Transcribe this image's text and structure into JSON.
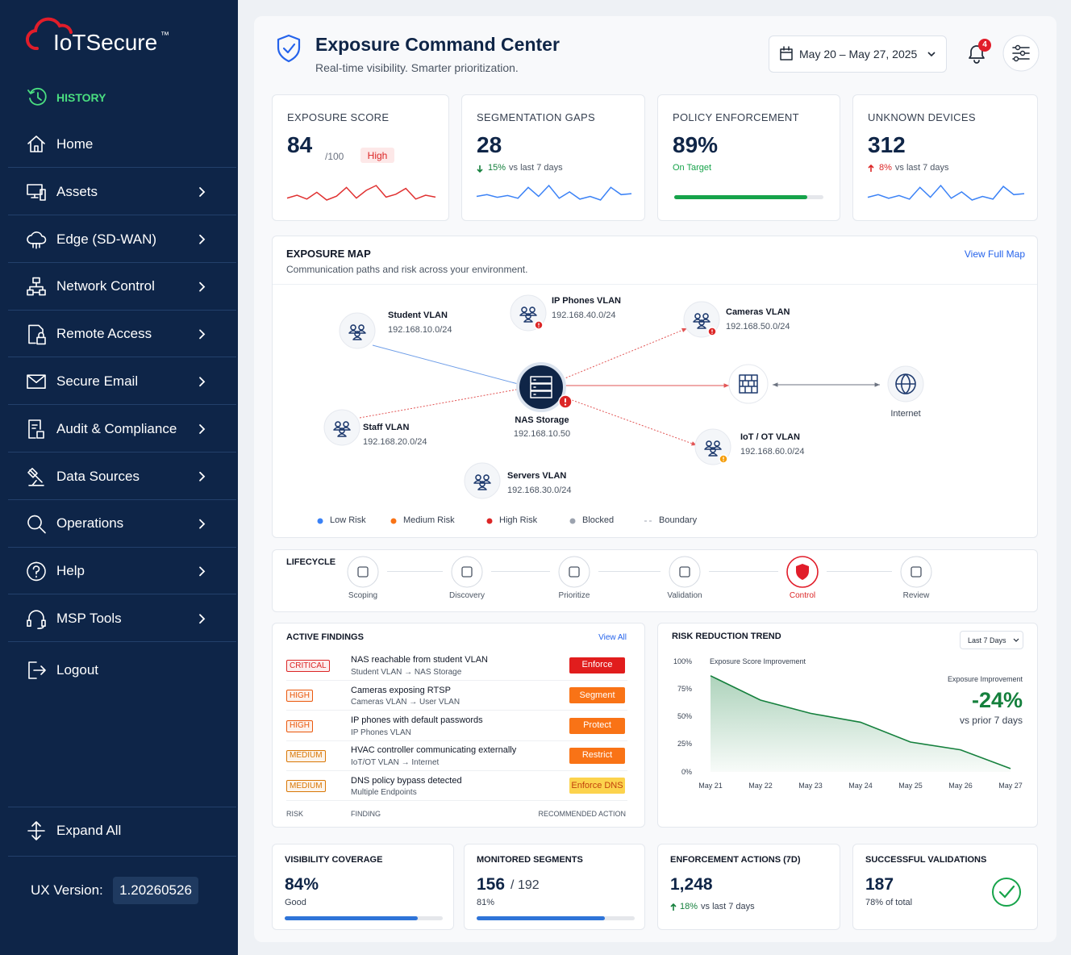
{
  "sidebar": {
    "logo": "IoTSecure",
    "logo_mark": "™",
    "history": "HISTORY",
    "menu": [
      {
        "label": "Home",
        "arrow": false
      },
      {
        "label": "Assets",
        "arrow": true
      },
      {
        "label": "Edge (SD-WAN)",
        "arrow": true
      },
      {
        "label": "Network Control",
        "arrow": true
      },
      {
        "label": "Remote Access",
        "arrow": true
      },
      {
        "label": "Secure Email",
        "arrow": true
      },
      {
        "label": "Audit & Compliance",
        "arrow": true
      },
      {
        "label": "Data Sources",
        "arrow": true
      },
      {
        "label": "Operations",
        "arrow": true
      },
      {
        "label": "Help",
        "arrow": true
      },
      {
        "label": "MSP Tools",
        "arrow": true
      }
    ],
    "logout": "Logout",
    "expand": "Expand All",
    "version_label": "UX Version:",
    "version": "1.20260526"
  },
  "header": {
    "title": "Exposure Command Center",
    "subtitle": "Real-time visibility. Smarter prioritization.",
    "date_range": "May 20 – May 27, 2025",
    "notifications": 4
  },
  "kpis": [
    {
      "label": "EXPOSURE SCORE",
      "value": 84,
      "max_label": "/100",
      "badge": "High",
      "color": "#e03131",
      "trend": [
        50,
        53,
        49,
        56,
        48,
        52,
        61,
        50,
        58,
        63,
        51,
        54,
        60,
        49,
        53,
        51
      ]
    },
    {
      "label": "SEGMENTATION GAPS",
      "value": 28,
      "change": "15%",
      "change_text": "vs last 7 days",
      "direction": "down",
      "change_color": "#15803d",
      "color": "#3b82f6",
      "trend": [
        50,
        52,
        49,
        51,
        48,
        60,
        50,
        62,
        48,
        55,
        47,
        50,
        46,
        60,
        52,
        53
      ]
    },
    {
      "label": "POLICY ENFORCEMENT",
      "value": 89,
      "value_label": "89%",
      "status": "On Target",
      "color": "#16a34a"
    },
    {
      "label": "UNKNOWN DEVICES",
      "value": 312,
      "change": "8%",
      "change_text": "vs last 7 days",
      "direction": "up",
      "change_color": "#dc2626",
      "color": "#3b82f6",
      "trend": [
        50,
        53,
        49,
        52,
        48,
        61,
        50,
        63,
        49,
        56,
        47,
        51,
        48,
        62,
        53,
        54
      ]
    }
  ],
  "map": {
    "title": "EXPOSURE MAP",
    "subtitle": "Communication paths and risk across your environment.",
    "link": "View Full Map",
    "nodes": [
      {
        "name": "Student VLAN",
        "subnet": "192.168.10.0/24"
      },
      {
        "name": "IP Phones VLAN",
        "subnet": "192.168.40.0/24",
        "alert": "high"
      },
      {
        "name": "Cameras VLAN",
        "subnet": "192.168.50.0/24",
        "alert": "high"
      },
      {
        "name": "NAS Storage",
        "subnet": "192.168.10.50",
        "alert": "high"
      },
      {
        "name": "Staff VLAN",
        "subnet": "192.168.20.0/24"
      },
      {
        "name": "IoT / OT VLAN",
        "subnet": "192.168.60.0/24",
        "alert": "medium"
      },
      {
        "name": "Servers VLAN",
        "subnet": "192.168.30.0/24"
      },
      {
        "name": "Internet"
      }
    ],
    "legend": [
      {
        "label": "Low Risk",
        "color": "#3b82f6"
      },
      {
        "label": "Medium Risk",
        "color": "#f97316"
      },
      {
        "label": "High Risk",
        "color": "#dc2626"
      },
      {
        "label": "Blocked",
        "color": "#9ca3af"
      },
      {
        "label": "Boundary",
        "color": "#9ca3af"
      }
    ]
  },
  "lifecycle": {
    "title": "LIFECYCLE",
    "steps": [
      "Scoping",
      "Discovery",
      "Prioritize",
      "Validation",
      "Control",
      "Review"
    ],
    "active_step": 4
  },
  "findings": {
    "title": "ACTIVE FINDINGS",
    "link": "View All",
    "rows": [
      {
        "risk": "CRITICAL",
        "finding": "NAS reachable from student VLAN",
        "path": "Student VLAN → NAS Storage",
        "action": "Enforce",
        "risk_color": "#dc2626",
        "action_color": "#e11d1d"
      },
      {
        "risk": "HIGH",
        "finding": "Cameras exposing RTSP",
        "path": "Cameras VLAN → User VLAN",
        "action": "Segment",
        "risk_color": "#ea580c",
        "action_color": "#f97316"
      },
      {
        "risk": "HIGH",
        "finding": "IP phones with default passwords",
        "path": "IP Phones VLAN",
        "action": "Protect",
        "risk_color": "#ea580c",
        "action_color": "#f97316"
      },
      {
        "risk": "MEDIUM",
        "finding": "HVAC controller communicating externally",
        "path": "IoT/OT VLAN → Internet",
        "action": "Restrict",
        "risk_color": "#d97706",
        "action_color": "#f97316"
      },
      {
        "risk": "MEDIUM",
        "finding": "DNS policy bypass detected",
        "path": "Multiple Endpoints",
        "action": "Enforce DNS",
        "risk_color": "#d97706",
        "action_color": "#fcd34d"
      }
    ],
    "columns": [
      "RISK",
      "FINDING",
      "RECOMMENDED ACTION"
    ]
  },
  "chart_data": {
    "type": "area",
    "title": "RISK REDUCTION TREND",
    "range_selector": "Last 7 Days",
    "categories": [
      "May 21",
      "May 22",
      "May 23",
      "May 24",
      "May 25",
      "May 26",
      "May 27"
    ],
    "series": [
      {
        "name": "Exposure Score Improvement",
        "color": "#15803d",
        "values": [
          87,
          65,
          53,
          45,
          27,
          20,
          3
        ]
      }
    ],
    "ylim": [
      0,
      100
    ],
    "yticks": [
      {
        "value": 0,
        "label": "0%"
      },
      {
        "value": 25,
        "label": "25%"
      },
      {
        "value": 50,
        "label": "50%"
      },
      {
        "value": 75,
        "label": "75%"
      },
      {
        "value": 100,
        "label": "100%"
      }
    ],
    "annotation": {
      "label": "Exposure Improvement",
      "value": "-24%",
      "note": "vs prior 7 days"
    }
  },
  "summary": [
    {
      "label": "VISIBILITY COVERAGE",
      "value": 84,
      "value_label": "84%",
      "status": "Good",
      "color": "#2f74d8"
    },
    {
      "label": "MONITORED SEGMENTS",
      "value": 156,
      "total_label": "/ 192",
      "percent": 81,
      "percent_label": "81%",
      "color": "#2f74d8"
    },
    {
      "label": "ENFORCEMENT ACTIONS (7D)",
      "value": 1248,
      "value_label": "1,248",
      "change": "18%",
      "change_text": "vs last 7 days",
      "change_color": "#15803d"
    },
    {
      "label": "SUCCESSFUL VALIDATIONS",
      "value": 187,
      "note": "78% of total",
      "color": "#16a34a"
    }
  ]
}
